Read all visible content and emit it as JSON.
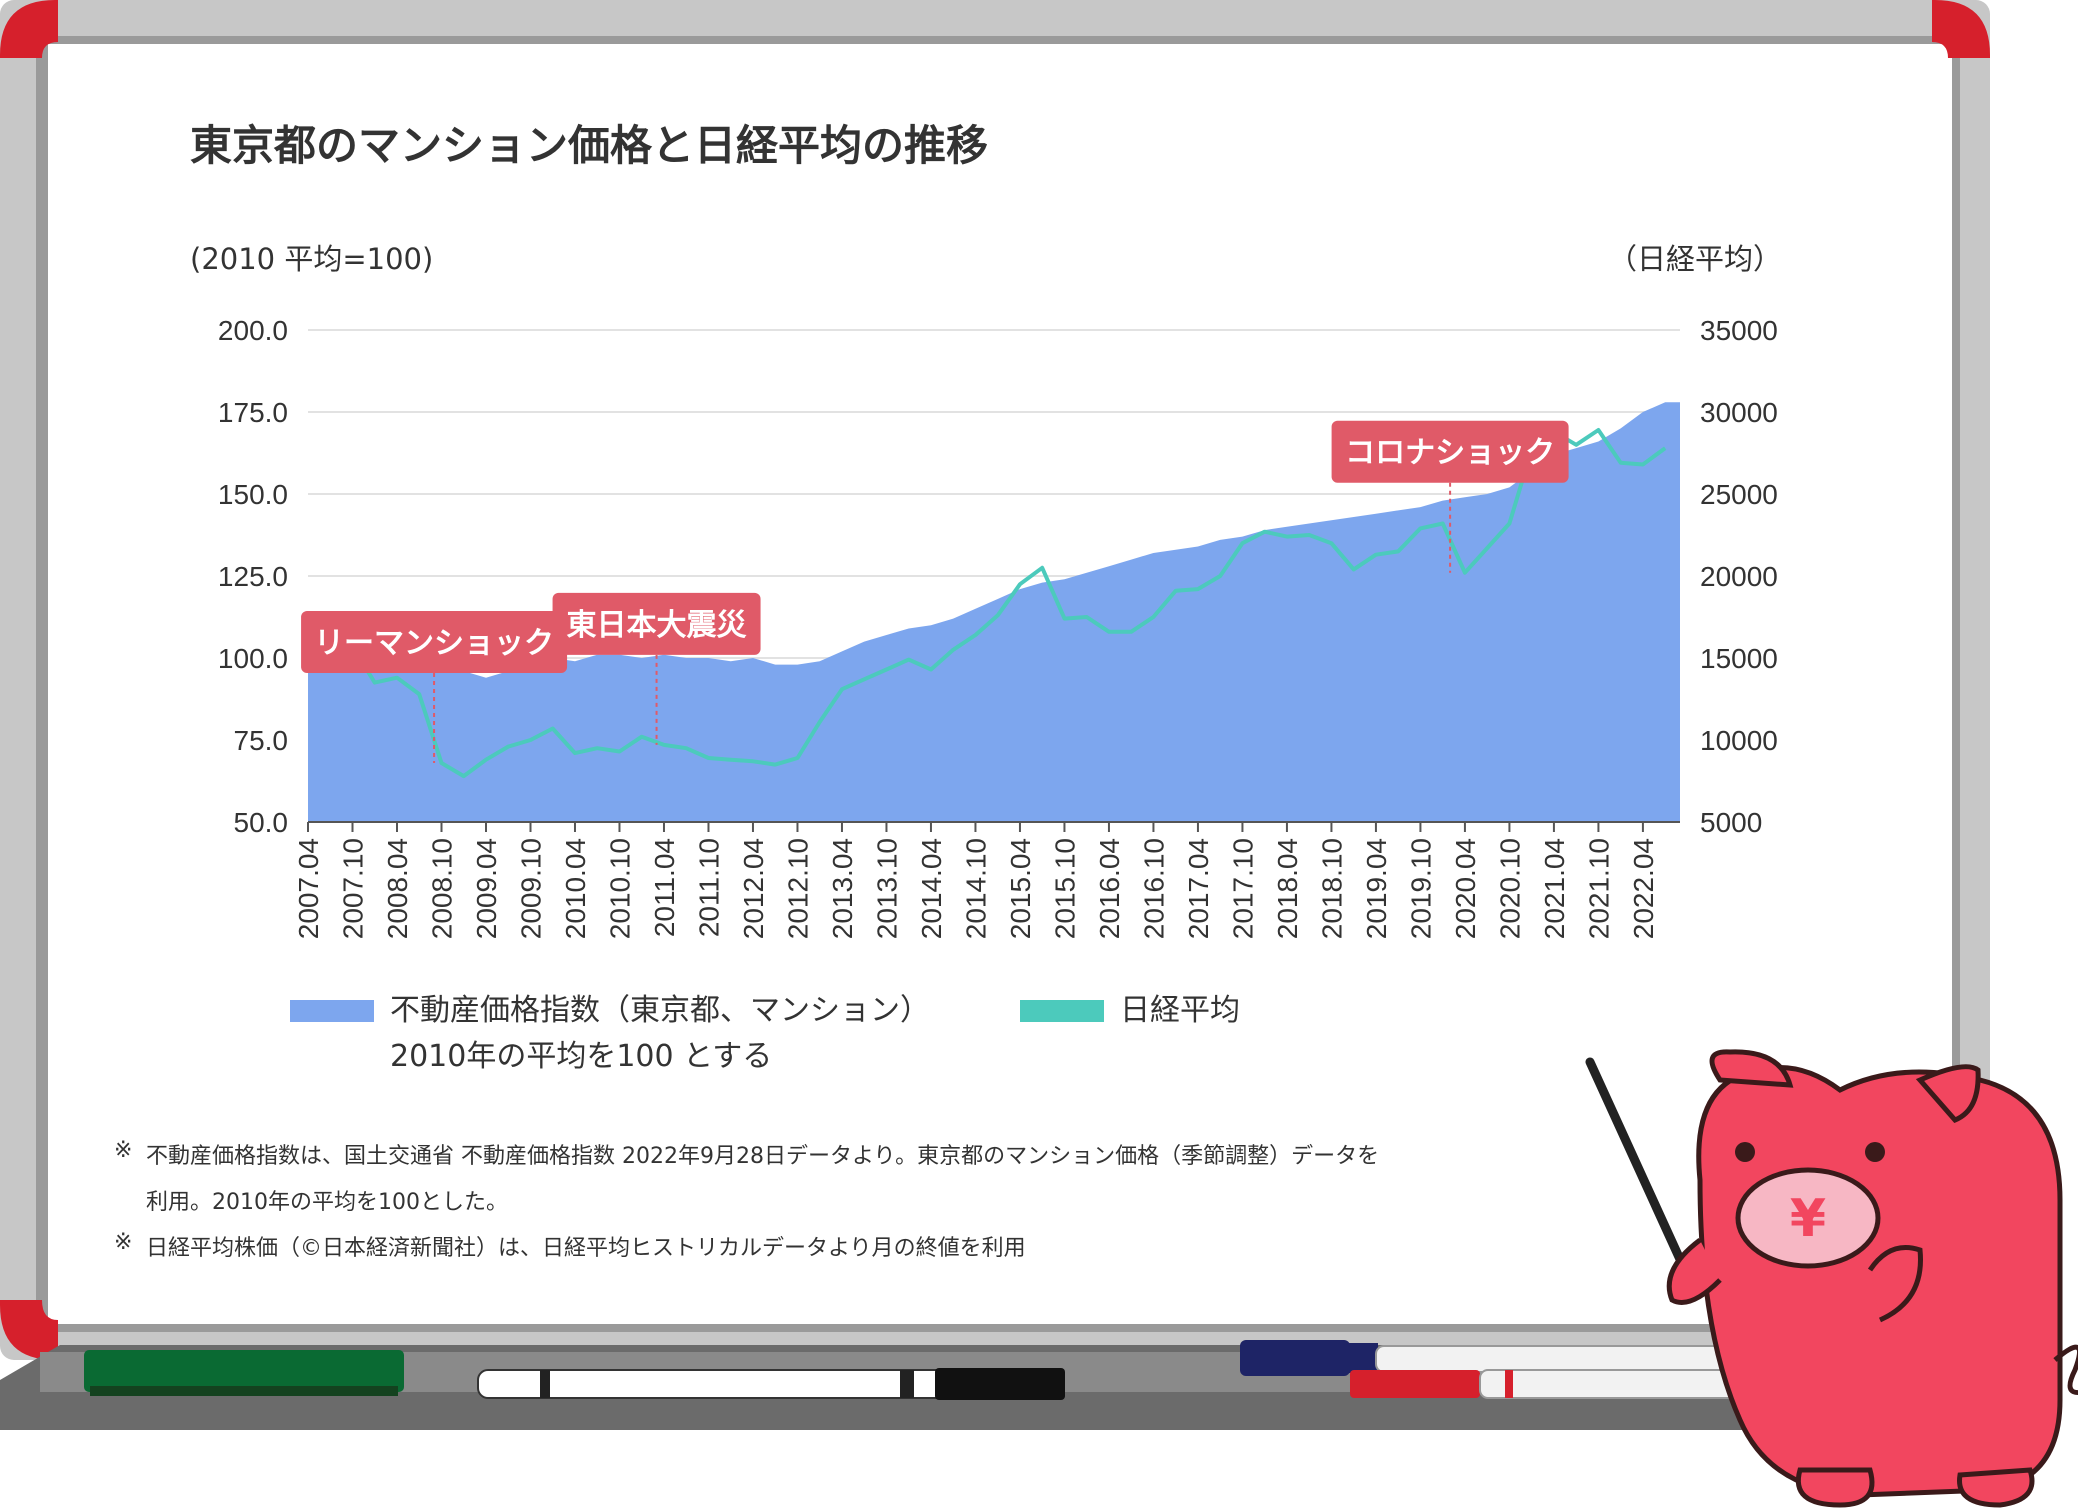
{
  "title": "東京都のマンション価格と日経平均の推移",
  "chart_data": {
    "type": "area",
    "left_axis_label": "(2010 平均=100)",
    "right_axis_label": "（日経平均）",
    "left_ticks": [
      "200.0",
      "175.0",
      "150.0",
      "125.0",
      "100.0",
      "75.0",
      "50.0"
    ],
    "right_ticks": [
      "35000",
      "30000",
      "25000",
      "20000",
      "15000",
      "10000",
      "5000"
    ],
    "ylim_left": [
      50,
      200
    ],
    "ylim_right": [
      5000,
      35000
    ],
    "x_tick_labels": [
      "2007.04",
      "2007.10",
      "2008.04",
      "2008.10",
      "2009.04",
      "2009.10",
      "2010.04",
      "2010.10",
      "2011.04",
      "2011.10",
      "2012.04",
      "2012.10",
      "2013.04",
      "2013.10",
      "2014.04",
      "2014.10",
      "2015.04",
      "2015.10",
      "2016.04",
      "2016.10",
      "2017.04",
      "2017.10",
      "2018.04",
      "2018.10",
      "2019.04",
      "2019.10",
      "2020.04",
      "2020.10",
      "2021.04",
      "2021.10",
      "2022.04"
    ],
    "series": [
      {
        "name": "不動産価格指数（東京都、マンション）2010年の平均を100 とする",
        "axis": "left",
        "style": "area",
        "color": "#7da6ee",
        "x": [
          "2007.04",
          "2007.07",
          "2007.10",
          "2008.01",
          "2008.04",
          "2008.07",
          "2008.10",
          "2009.01",
          "2009.04",
          "2009.07",
          "2009.10",
          "2010.01",
          "2010.04",
          "2010.07",
          "2010.10",
          "2011.01",
          "2011.04",
          "2011.07",
          "2011.10",
          "2012.01",
          "2012.04",
          "2012.07",
          "2012.10",
          "2013.01",
          "2013.04",
          "2013.07",
          "2013.10",
          "2014.01",
          "2014.04",
          "2014.07",
          "2014.10",
          "2015.01",
          "2015.04",
          "2015.07",
          "2015.10",
          "2016.01",
          "2016.04",
          "2016.07",
          "2016.10",
          "2017.01",
          "2017.04",
          "2017.07",
          "2017.10",
          "2018.01",
          "2018.04",
          "2018.07",
          "2018.10",
          "2019.01",
          "2019.04",
          "2019.07",
          "2019.10",
          "2020.01",
          "2020.04",
          "2020.07",
          "2020.10",
          "2021.01",
          "2021.04",
          "2021.07",
          "2021.10",
          "2022.01",
          "2022.04",
          "2022.07"
        ],
        "values": [
          101,
          102,
          104,
          101,
          100,
          100,
          97,
          96,
          94,
          96,
          98,
          100,
          99,
          101,
          101,
          100,
          101,
          100,
          100,
          99,
          100,
          98,
          98,
          99,
          102,
          105,
          107,
          109,
          110,
          112,
          115,
          118,
          121,
          123,
          124,
          126,
          128,
          130,
          132,
          133,
          134,
          136,
          137,
          139,
          140,
          141,
          142,
          143,
          144,
          145,
          146,
          148,
          149,
          150,
          152,
          157,
          162,
          164,
          166,
          170,
          175,
          178
        ]
      },
      {
        "name": "日経平均",
        "axis": "right",
        "style": "line",
        "color": "#4ccabc",
        "x": [
          "2007.04",
          "2007.07",
          "2007.10",
          "2008.01",
          "2008.04",
          "2008.07",
          "2008.10",
          "2009.01",
          "2009.04",
          "2009.07",
          "2009.10",
          "2010.01",
          "2010.04",
          "2010.07",
          "2010.10",
          "2011.01",
          "2011.04",
          "2011.07",
          "2011.10",
          "2012.01",
          "2012.04",
          "2012.07",
          "2012.10",
          "2013.01",
          "2013.04",
          "2013.07",
          "2013.10",
          "2014.01",
          "2014.04",
          "2014.07",
          "2014.10",
          "2015.01",
          "2015.04",
          "2015.07",
          "2015.10",
          "2016.01",
          "2016.04",
          "2016.07",
          "2016.10",
          "2017.01",
          "2017.04",
          "2017.07",
          "2017.10",
          "2018.01",
          "2018.04",
          "2018.07",
          "2018.10",
          "2019.01",
          "2019.04",
          "2019.07",
          "2019.10",
          "2020.01",
          "2020.04",
          "2020.07",
          "2020.10",
          "2021.01",
          "2021.04",
          "2021.07",
          "2021.10",
          "2022.01",
          "2022.04",
          "2022.07"
        ],
        "values": [
          17300,
          16800,
          15700,
          13500,
          13800,
          12800,
          8600,
          7800,
          8800,
          9600,
          10000,
          10700,
          9200,
          9500,
          9300,
          10200,
          9700,
          9500,
          8900,
          8800,
          8700,
          8500,
          8900,
          11100,
          13100,
          13700,
          14300,
          14900,
          14300,
          15500,
          16400,
          17600,
          19500,
          20500,
          17400,
          17500,
          16600,
          16600,
          17500,
          19100,
          19200,
          20000,
          22000,
          22700,
          22400,
          22500,
          22000,
          20400,
          21300,
          21500,
          22900,
          23200,
          20200,
          21700,
          23200,
          27700,
          28800,
          28000,
          28900,
          26900,
          26800,
          27800
        ]
      }
    ],
    "annotations": [
      {
        "label": "リーマンショック",
        "x": "2008.09"
      },
      {
        "label": "東日本大震災",
        "x": "2011.03"
      },
      {
        "label": "コロナショック",
        "x": "2020.02"
      }
    ],
    "annotation_color": "#e05a68",
    "grid": true,
    "legend_placement": "bottom"
  },
  "legend": {
    "index_label_line1": "不動産価格指数（東京都、マンション）",
    "index_label_line2": "2010年の平均を100 とする",
    "nikkei_label": "日経平均"
  },
  "notes": {
    "mark": "※",
    "note1_line1": "不動産価格指数は、国土交通省 不動産価格指数 2022年9月28日データより。東京都のマンション価格（季節調整）データを",
    "note1_line2": "利用。2010年の平均を100とした。",
    "note2": "日経平均株価（©日本経済新聞社）は、日経平均ヒストリカルデータより月の終値を利用"
  },
  "mascot": {
    "symbol": "¥"
  },
  "colors": {
    "board_frame": "#c8c8c8",
    "board_corner": "#d6202c",
    "tray": "#707070",
    "eraser": "#0a6a33",
    "mascot_body": "#f2465f"
  }
}
